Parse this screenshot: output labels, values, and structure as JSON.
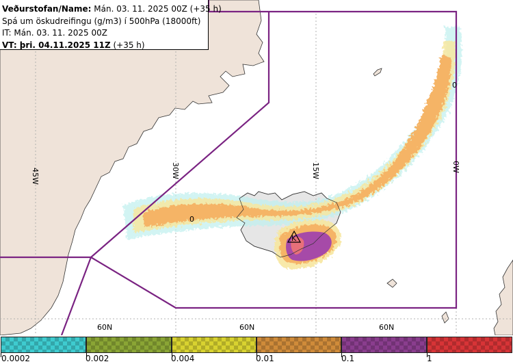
{
  "header": {
    "line1_bold": "Veðurstofan/Name:",
    "line1_rest": " Mán. 03. 11. 2025 00Z (+35 h)",
    "line2": "Spá um öskudreifingu (g/m3) í 500hPa (18000ft)",
    "line3": "IT: Mán. 03. 11. 2025 00Z",
    "line4_bold": "VT: þri. 04.11.2025 11Z",
    "line4_rest": " (+35 h)"
  },
  "map": {
    "longitude_labels": [
      "45W",
      "30W",
      "15W",
      "0W"
    ],
    "latitude_labels": [
      "60N",
      "60N",
      "60N"
    ],
    "plume_labels": [
      "0",
      "0"
    ],
    "volcano_label": "K"
  },
  "legend": {
    "tick_labels": [
      "0.0002",
      "0.002",
      "0.004",
      "0.01",
      "0.1",
      "1"
    ],
    "colors": [
      "#3ecbcf",
      "#8aa535",
      "#d8d230",
      "#cf8b3a",
      "#8a3d8e",
      "#d73437"
    ]
  }
}
